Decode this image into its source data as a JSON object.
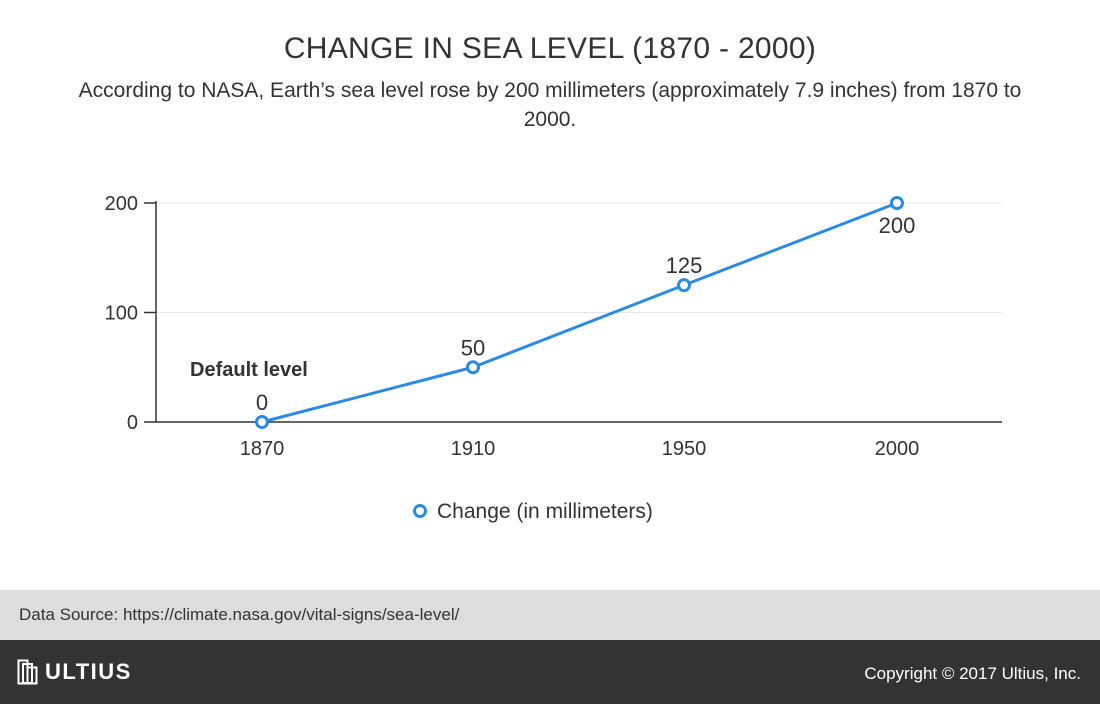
{
  "header": {
    "title": "CHANGE IN SEA LEVEL (1870 - 2000)",
    "subtitle": "According to NASA, Earth’s sea level rose by 200 millimeters (approximately 7.9 inches) from 1870 to 2000."
  },
  "chart_data": {
    "type": "line",
    "categories": [
      "1870",
      "1910",
      "1950",
      "2000"
    ],
    "series": [
      {
        "name": "Change (in millimeters)",
        "values": [
          0,
          50,
          125,
          200
        ],
        "color": "#2b8ae2"
      }
    ],
    "data_labels": [
      "0",
      "50",
      "125",
      "200"
    ],
    "annotation": {
      "text": "Default level",
      "category": "1870"
    },
    "y_ticks": [
      0,
      100,
      200
    ],
    "ylim": [
      0,
      200
    ],
    "grid": true,
    "legend_position": "bottom-center"
  },
  "footer": {
    "source": "Data Source: https://climate.nasa.gov/vital-signs/sea-level/",
    "brand": "ULTIUS",
    "copyright": "Copyright © 2017 Ultius, Inc."
  }
}
